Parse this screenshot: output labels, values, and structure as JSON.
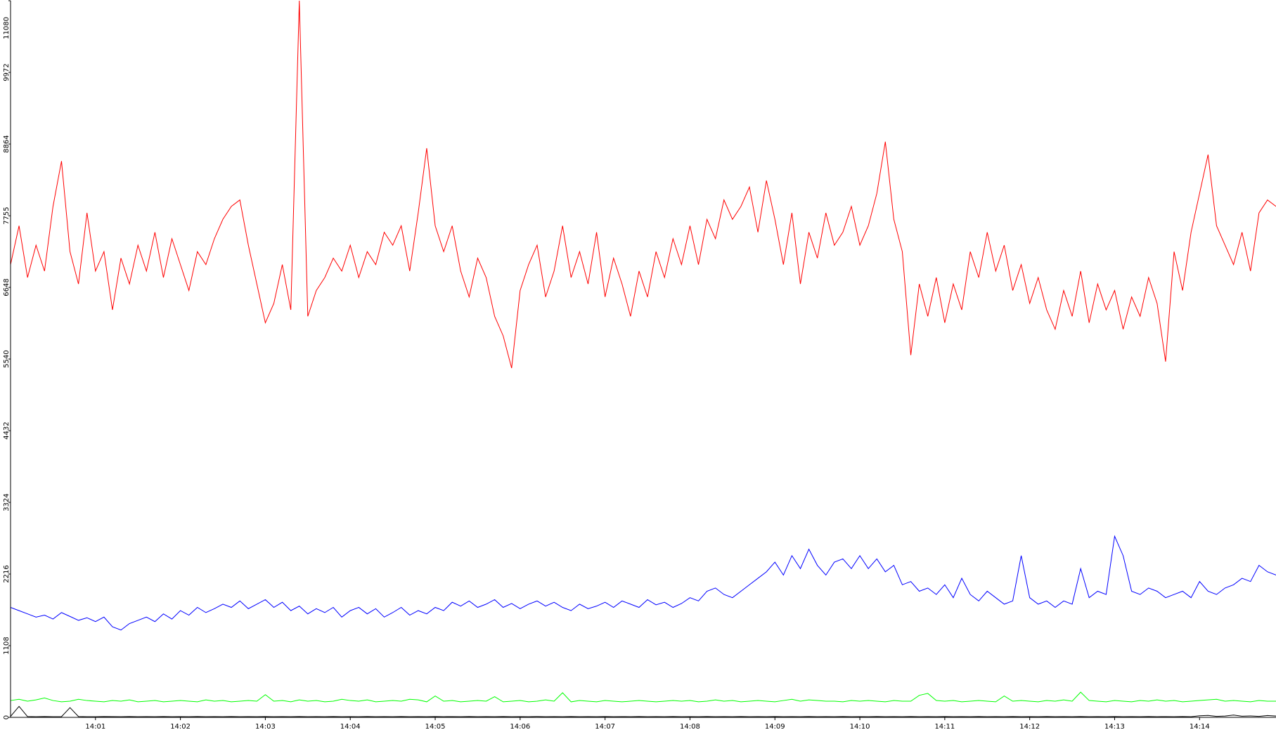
{
  "chart_data": {
    "type": "line",
    "categories": [
      null,
      null,
      null,
      null,
      null,
      null,
      null,
      null,
      null,
      null,
      "14:01",
      null,
      null,
      null,
      null,
      null,
      null,
      null,
      null,
      null,
      "14:02",
      null,
      null,
      null,
      null,
      null,
      null,
      null,
      null,
      null,
      "14:03",
      null,
      null,
      null,
      null,
      null,
      null,
      null,
      null,
      null,
      "14:04",
      null,
      null,
      null,
      null,
      null,
      null,
      null,
      null,
      null,
      "14:05",
      null,
      null,
      null,
      null,
      null,
      null,
      null,
      null,
      null,
      "14:06",
      null,
      null,
      null,
      null,
      null,
      null,
      null,
      null,
      null,
      "14:07",
      null,
      null,
      null,
      null,
      null,
      null,
      null,
      null,
      null,
      "14:08",
      null,
      null,
      null,
      null,
      null,
      null,
      null,
      null,
      null,
      "14:09",
      null,
      null,
      null,
      null,
      null,
      null,
      null,
      null,
      null,
      "14:10",
      null,
      null,
      null,
      null,
      null,
      null,
      null,
      null,
      null,
      "14:11",
      null,
      null,
      null,
      null,
      null,
      null,
      null,
      null,
      null,
      "14:12",
      null,
      null,
      null,
      null,
      null,
      null,
      null,
      null,
      null,
      "14:13",
      null,
      null,
      null,
      null,
      null,
      null,
      null,
      null,
      null,
      "14:14",
      null,
      null,
      null,
      null,
      null,
      null,
      null,
      null,
      null
    ],
    "series": [
      {
        "color": "#ff0000",
        "values": [
          7000,
          7600,
          6800,
          7300,
          6900,
          7900,
          8600,
          7200,
          6700,
          7800,
          6900,
          7200,
          6300,
          7100,
          6700,
          7300,
          6900,
          7500,
          6800,
          7400,
          7000,
          6600,
          7200,
          7000,
          7400,
          7700,
          7900,
          8000,
          7300,
          6700,
          6100,
          6400,
          7000,
          6300,
          11080,
          6200,
          6600,
          6800,
          7100,
          6900,
          7300,
          6800,
          7200,
          7000,
          7500,
          7300,
          7600,
          6900,
          7800,
          8800,
          7600,
          7200,
          7600,
          6900,
          6500,
          7100,
          6800,
          6200,
          5900,
          5400,
          6600,
          7000,
          7300,
          6500,
          6900,
          7600,
          6800,
          7200,
          6700,
          7500,
          6500,
          7100,
          6700,
          6200,
          6900,
          6500,
          7200,
          6800,
          7400,
          7000,
          7600,
          7000,
          7700,
          7400,
          8000,
          7700,
          7900,
          8200,
          7500,
          8300,
          7700,
          7000,
          7800,
          6700,
          7500,
          7100,
          7800,
          7300,
          7500,
          7900,
          7300,
          7600,
          8100,
          8900,
          7700,
          7200,
          5600,
          6700,
          6200,
          6800,
          6100,
          6700,
          6300,
          7200,
          6800,
          7500,
          6900,
          7300,
          6600,
          7000,
          6400,
          6800,
          6300,
          6000,
          6600,
          6200,
          6900,
          6100,
          6700,
          6300,
          6600,
          6000,
          6500,
          6200,
          6800,
          6400,
          5500,
          7200,
          6600,
          7500,
          8100,
          8700,
          7600,
          7300,
          7000,
          7500,
          6900,
          7800,
          8000,
          7900
        ]
      },
      {
        "color": "#0000ff",
        "values": [
          1700,
          1650,
          1600,
          1550,
          1580,
          1520,
          1620,
          1560,
          1500,
          1540,
          1480,
          1550,
          1400,
          1350,
          1450,
          1500,
          1550,
          1480,
          1600,
          1520,
          1650,
          1580,
          1700,
          1620,
          1680,
          1750,
          1700,
          1800,
          1680,
          1750,
          1820,
          1700,
          1780,
          1650,
          1720,
          1600,
          1680,
          1620,
          1700,
          1550,
          1650,
          1700,
          1600,
          1680,
          1550,
          1620,
          1700,
          1580,
          1650,
          1600,
          1700,
          1650,
          1780,
          1720,
          1800,
          1700,
          1750,
          1820,
          1700,
          1760,
          1680,
          1750,
          1800,
          1720,
          1780,
          1700,
          1650,
          1750,
          1680,
          1720,
          1780,
          1700,
          1800,
          1750,
          1700,
          1820,
          1740,
          1780,
          1700,
          1760,
          1850,
          1800,
          1950,
          2000,
          1900,
          1850,
          1950,
          2050,
          2150,
          2250,
          2400,
          2200,
          2500,
          2300,
          2600,
          2350,
          2200,
          2400,
          2450,
          2300,
          2500,
          2300,
          2450,
          2250,
          2350,
          2050,
          2100,
          1950,
          2000,
          1900,
          2050,
          1850,
          2150,
          1900,
          1800,
          1950,
          1850,
          1750,
          1800,
          2500,
          1850,
          1750,
          1800,
          1700,
          1800,
          1750,
          2300,
          1850,
          1950,
          1900,
          2800,
          2500,
          1950,
          1900,
          2000,
          1950,
          1850,
          1900,
          1950,
          1850,
          2100,
          1950,
          1900,
          2000,
          2050,
          2150,
          2100,
          2350,
          2250,
          2200
        ]
      },
      {
        "color": "#00ff00",
        "values": [
          260,
          280,
          250,
          270,
          300,
          260,
          240,
          250,
          280,
          260,
          250,
          240,
          260,
          250,
          270,
          240,
          250,
          260,
          240,
          250,
          260,
          250,
          240,
          270,
          250,
          260,
          240,
          250,
          260,
          250,
          350,
          250,
          260,
          240,
          270,
          250,
          260,
          240,
          250,
          280,
          260,
          250,
          270,
          240,
          250,
          260,
          250,
          280,
          270,
          240,
          330,
          250,
          260,
          240,
          250,
          260,
          250,
          320,
          240,
          250,
          260,
          240,
          250,
          270,
          250,
          380,
          240,
          260,
          250,
          240,
          260,
          250,
          240,
          250,
          260,
          250,
          240,
          250,
          260,
          250,
          260,
          240,
          250,
          270,
          250,
          260,
          240,
          250,
          260,
          250,
          240,
          260,
          280,
          250,
          270,
          260,
          250,
          250,
          240,
          260,
          250,
          260,
          250,
          240,
          260,
          250,
          250,
          340,
          370,
          260,
          250,
          260,
          240,
          250,
          260,
          250,
          240,
          330,
          250,
          260,
          250,
          240,
          260,
          250,
          270,
          250,
          390,
          260,
          250,
          240,
          260,
          250,
          240,
          260,
          250,
          270,
          250,
          260,
          240,
          250,
          260,
          270,
          280,
          250,
          260,
          250,
          240,
          260,
          250,
          250
        ]
      },
      {
        "color": "#000000",
        "values": [
          15,
          170,
          12,
          10,
          12,
          10,
          11,
          150,
          12,
          10,
          10,
          12,
          11,
          10,
          12,
          10,
          11,
          10,
          12,
          10,
          11,
          10,
          12,
          10,
          11,
          10,
          12,
          10,
          11,
          10,
          12,
          10,
          11,
          10,
          12,
          10,
          11,
          10,
          12,
          10,
          11,
          10,
          12,
          10,
          11,
          10,
          12,
          10,
          11,
          10,
          12,
          10,
          11,
          10,
          12,
          10,
          11,
          10,
          12,
          10,
          11,
          10,
          12,
          10,
          11,
          10,
          12,
          10,
          11,
          10,
          12,
          10,
          11,
          10,
          12,
          10,
          11,
          10,
          12,
          10,
          11,
          10,
          12,
          10,
          11,
          10,
          12,
          10,
          11,
          10,
          12,
          10,
          11,
          10,
          12,
          10,
          11,
          10,
          12,
          10,
          11,
          10,
          12,
          10,
          11,
          10,
          12,
          10,
          11,
          10,
          12,
          10,
          11,
          10,
          12,
          10,
          11,
          10,
          12,
          10,
          11,
          10,
          12,
          10,
          11,
          10,
          12,
          10,
          11,
          10,
          12,
          10,
          11,
          10,
          12,
          10,
          11,
          10,
          12,
          10,
          25,
          30,
          15,
          20,
          35,
          18,
          22,
          15,
          28,
          20
        ]
      }
    ],
    "ylim": [
      0,
      11080
    ],
    "yticks": [
      0,
      1108,
      2216,
      3324,
      4432,
      5540,
      6648,
      7755,
      8864,
      9972,
      11080
    ]
  }
}
